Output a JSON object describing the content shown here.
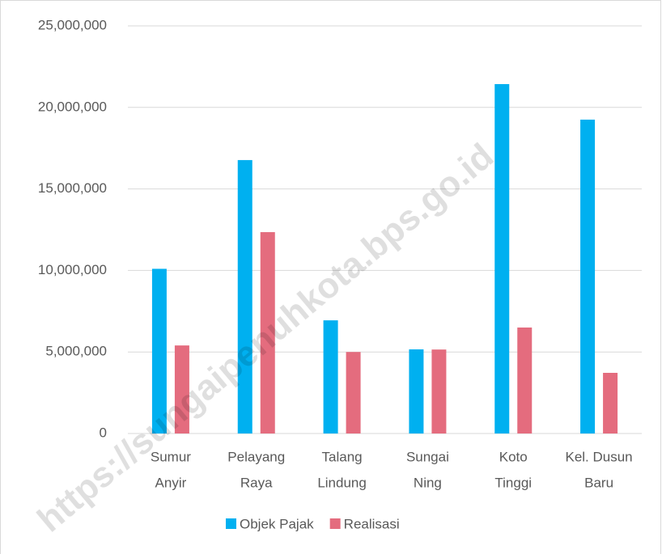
{
  "chart_data": {
    "type": "bar",
    "categories": [
      [
        "Sumur",
        "Anyir"
      ],
      [
        "Pelayang",
        "Raya"
      ],
      [
        "Talang",
        "Lindung"
      ],
      [
        "Sungai",
        "Ning"
      ],
      [
        "Koto",
        "Tinggi"
      ],
      [
        "Kel. Dusun",
        "Baru"
      ]
    ],
    "series": [
      {
        "name": "Objek Pajak",
        "color": "#00b0f0",
        "values": [
          10100000,
          16770000,
          6940000,
          5160000,
          21430000,
          19250000
        ]
      },
      {
        "name": "Realisasi",
        "color": "#e46c7e",
        "values": [
          5400000,
          12350000,
          5000000,
          5150000,
          6500000,
          3720000
        ]
      }
    ],
    "ylim": [
      0,
      25000000
    ],
    "yticks": [
      0,
      {
        "value": 5000000,
        "label": "5,000,000"
      },
      {
        "value": 10000000,
        "label": "10,000,000"
      },
      {
        "value": 15000000,
        "label": "15,000,000"
      },
      {
        "value": 20000000,
        "label": "20,000,000"
      },
      {
        "value": 25000000,
        "label": "25,000,000"
      }
    ],
    "grid": true,
    "legend": "bottom",
    "watermark": "https://sungaipenuhkota.bps.go.id"
  }
}
